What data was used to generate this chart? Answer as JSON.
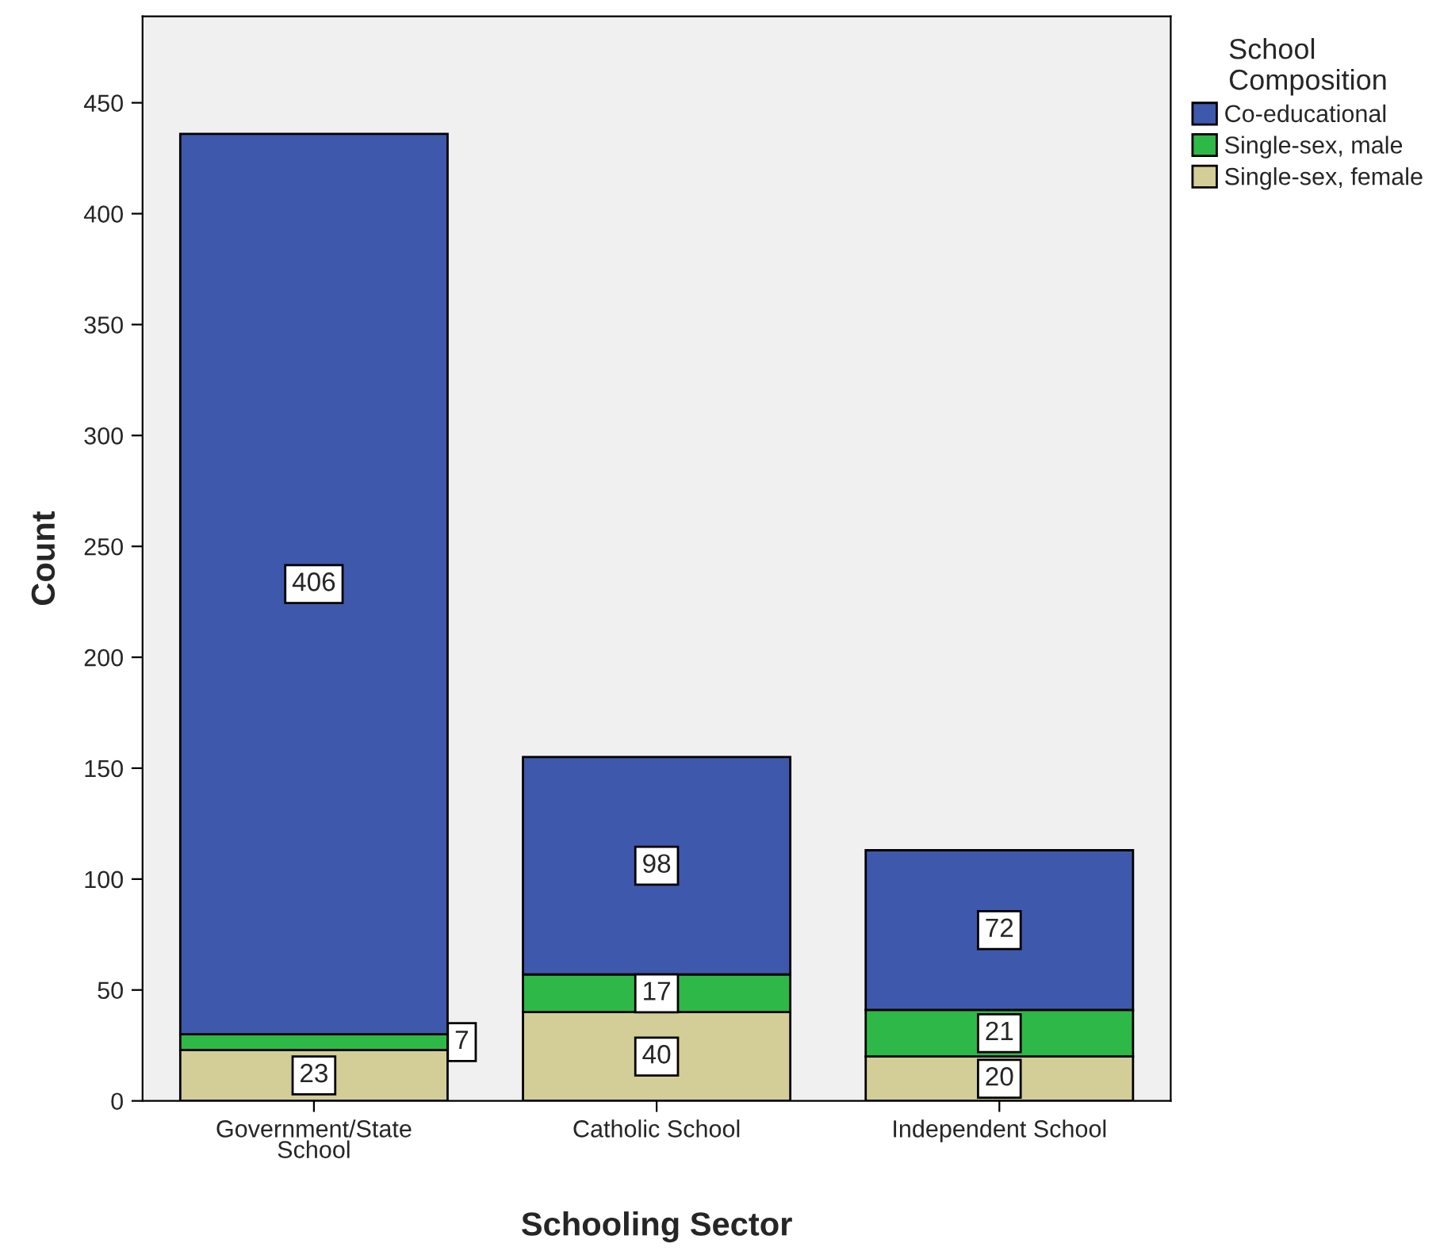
{
  "chart_data": {
    "type": "bar",
    "stacked": true,
    "xlabel": "Schooling Sector",
    "ylabel": "Count",
    "legend_title": "School\nComposition",
    "categories": [
      "Government/State\nSchool",
      "Catholic School",
      "Independent School"
    ],
    "series": [
      {
        "name": "Single-sex, female",
        "color": "#d3ce97",
        "values": [
          23,
          40,
          20
        ]
      },
      {
        "name": "Single-sex, male",
        "color": "#2eb848",
        "values": [
          7,
          17,
          21
        ]
      },
      {
        "name": "Co-educational",
        "color": "#3e58ac",
        "values": [
          406,
          98,
          72
        ]
      }
    ],
    "ylim": [
      0,
      489
    ],
    "yticks": [
      0,
      50,
      100,
      150,
      200,
      250,
      300,
      350,
      400,
      450
    ],
    "data_labels": true,
    "legend": "top right",
    "grid": false
  }
}
